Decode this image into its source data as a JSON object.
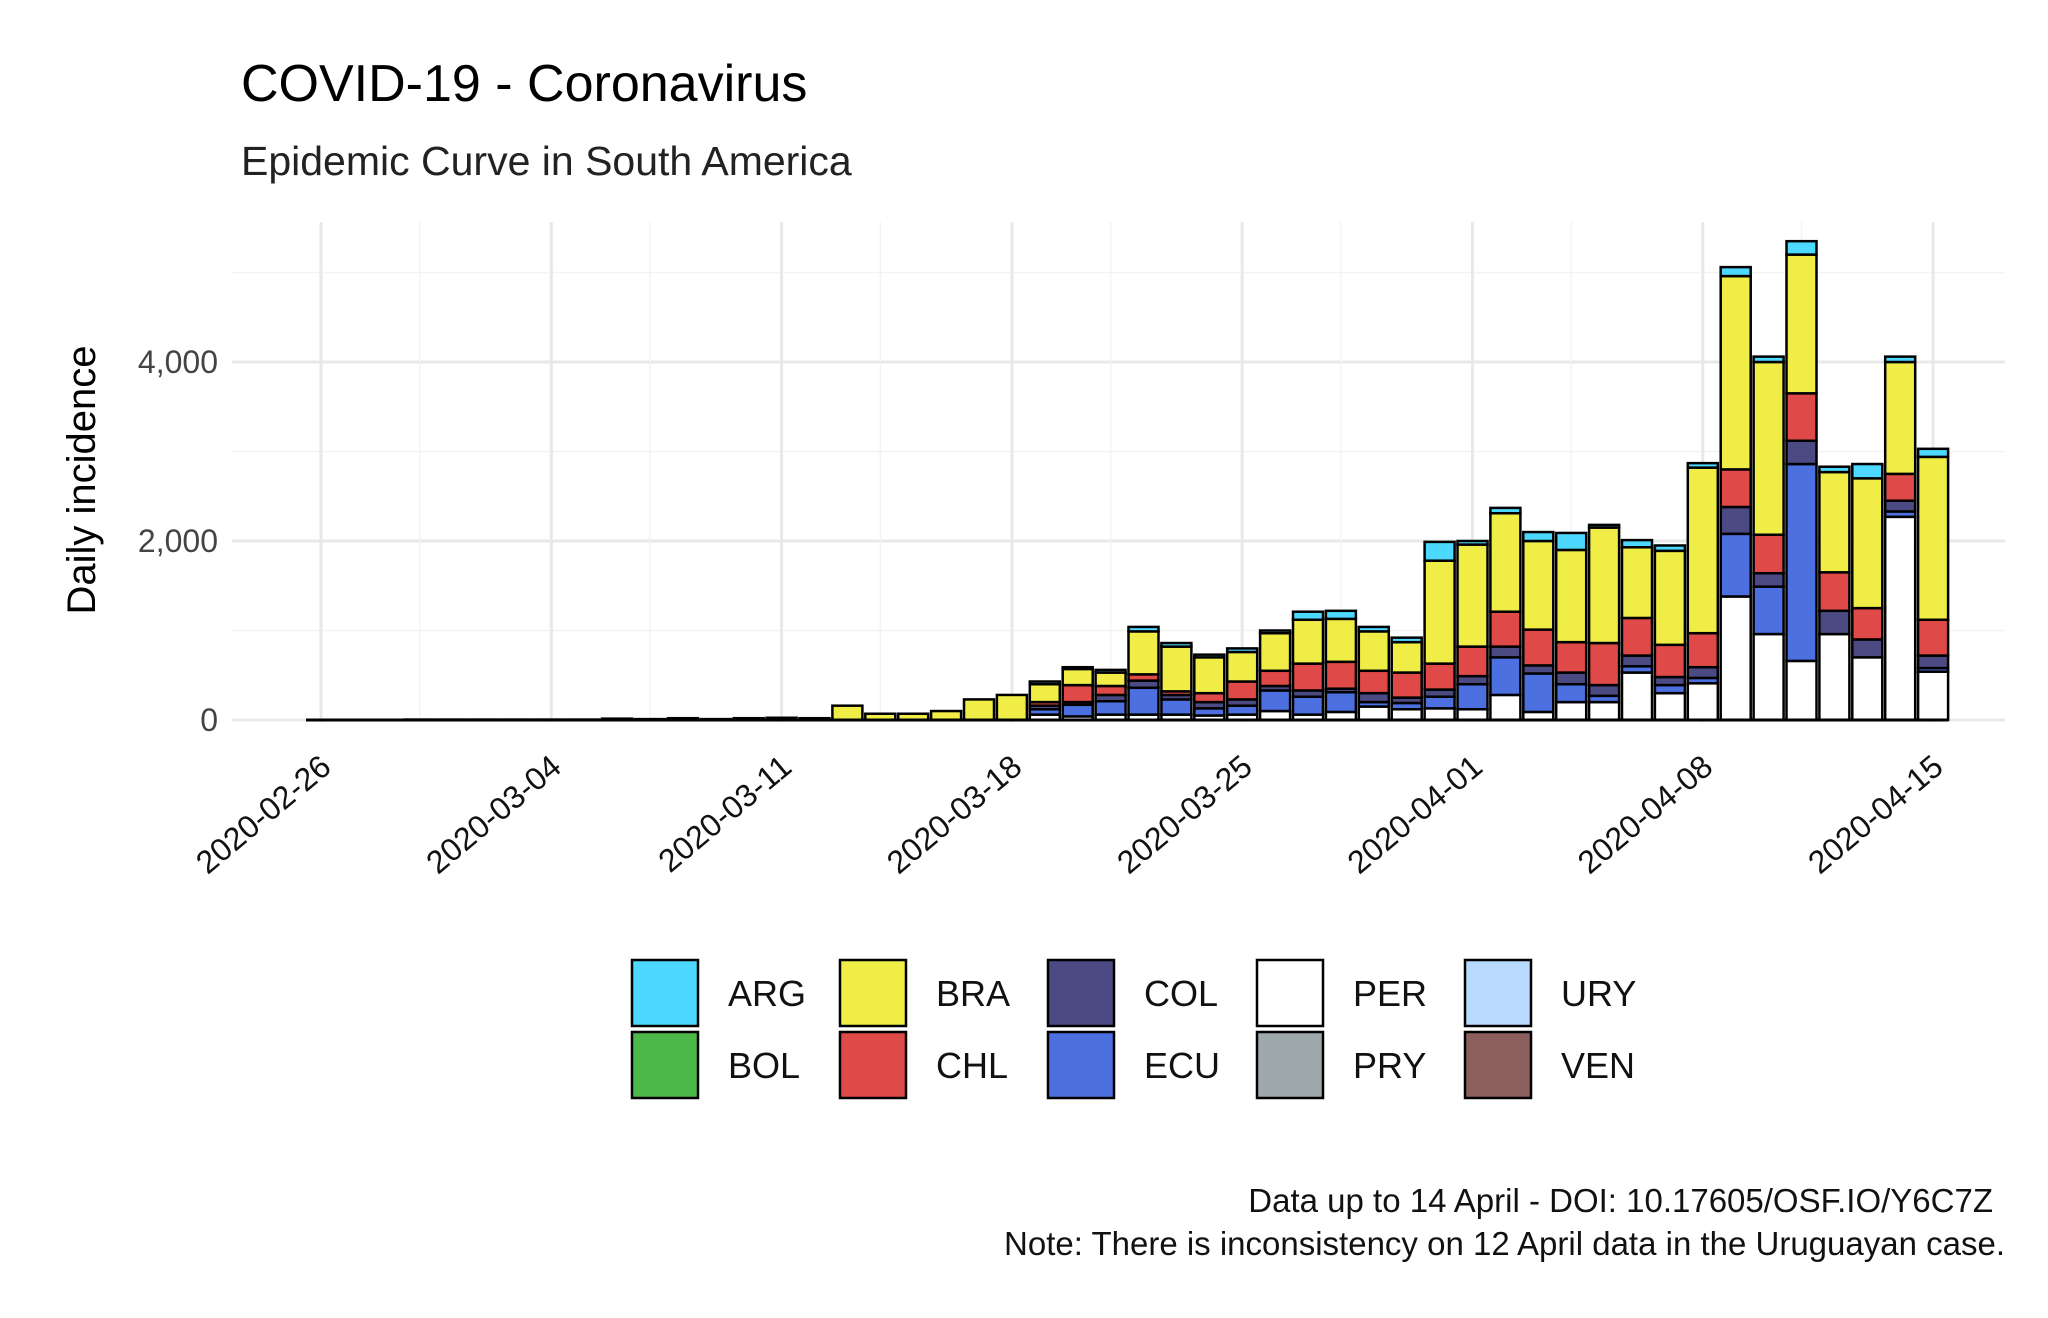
{
  "colors": {
    "ARG": "#4dd9ff",
    "BOL": "#4cba4a",
    "BRA": "#f0ee46",
    "CHL": "#df4a48",
    "COL": "#4b4a82",
    "ECU": "#4c70e0",
    "PER": "#ffffff",
    "PRY": "#9ea9ab",
    "URY": "#b9daff",
    "VEN": "#8c5f5f"
  },
  "caption": {
    "line1": "Data up to 14 April - DOI: 10.17605/OSF.IO/Y6C7Z",
    "line2": "Note: There is inconsistency on 12 April data in the Uruguayan case."
  },
  "chart_data": {
    "type": "bar",
    "stacked": true,
    "title": "COVID-19 - Coronavirus",
    "subtitle": "Epidemic Curve in South America",
    "xlabel": "",
    "ylabel": "Daily incidence",
    "ylim": [
      0,
      5600
    ],
    "yticks": [
      0,
      2000,
      4000
    ],
    "ytick_labels": [
      "0",
      "2,000",
      "4,000"
    ],
    "xticks": [
      "2020-02-26",
      "2020-03-04",
      "2020-03-11",
      "2020-03-18",
      "2020-03-25",
      "2020-04-01",
      "2020-04-08",
      "2020-04-15"
    ],
    "grid": true,
    "legend_position": "bottom",
    "legend": [
      "ARG",
      "BRA",
      "COL",
      "PER",
      "URY",
      "BOL",
      "CHL",
      "ECU",
      "PRY",
      "VEN"
    ],
    "stack_order": [
      "PER",
      "ECU",
      "COL",
      "CHL",
      "BRA",
      "ARG"
    ],
    "categories": [
      "2020-02-26",
      "2020-02-27",
      "2020-02-28",
      "2020-02-29",
      "2020-03-01",
      "2020-03-02",
      "2020-03-03",
      "2020-03-04",
      "2020-03-05",
      "2020-03-06",
      "2020-03-07",
      "2020-03-08",
      "2020-03-09",
      "2020-03-10",
      "2020-03-11",
      "2020-03-12",
      "2020-03-13",
      "2020-03-14",
      "2020-03-15",
      "2020-03-16",
      "2020-03-17",
      "2020-03-18",
      "2020-03-19",
      "2020-03-20",
      "2020-03-21",
      "2020-03-22",
      "2020-03-23",
      "2020-03-24",
      "2020-03-25",
      "2020-03-26",
      "2020-03-27",
      "2020-03-28",
      "2020-03-29",
      "2020-03-30",
      "2020-03-31",
      "2020-04-01",
      "2020-04-02",
      "2020-04-03",
      "2020-04-04",
      "2020-04-05",
      "2020-04-06",
      "2020-04-07",
      "2020-04-08",
      "2020-04-09",
      "2020-04-10",
      "2020-04-11",
      "2020-04-12",
      "2020-04-13",
      "2020-04-14",
      "2020-04-15"
    ],
    "series": [
      {
        "name": "PER",
        "values": [
          0,
          0,
          0,
          0,
          0,
          0,
          0,
          0,
          0,
          0,
          0,
          0,
          0,
          0,
          0,
          0,
          0,
          0,
          0,
          0,
          0,
          0,
          60,
          40,
          60,
          60,
          60,
          50,
          60,
          100,
          60,
          90,
          150,
          120,
          130,
          120,
          280,
          90,
          200,
          200,
          530,
          300,
          410,
          1380,
          960,
          660,
          960,
          700,
          2270,
          540
        ]
      },
      {
        "name": "ECU",
        "values": [
          0,
          0,
          0,
          0,
          0,
          0,
          0,
          0,
          0,
          0,
          0,
          0,
          0,
          0,
          0,
          0,
          0,
          0,
          0,
          0,
          0,
          0,
          60,
          130,
          150,
          300,
          170,
          80,
          100,
          230,
          200,
          220,
          50,
          70,
          130,
          280,
          420,
          430,
          200,
          70,
          70,
          90,
          60,
          700,
          530,
          2200,
          0,
          0,
          60,
          40
        ]
      },
      {
        "name": "COL",
        "values": [
          0,
          0,
          0,
          0,
          0,
          0,
          0,
          0,
          0,
          0,
          0,
          0,
          0,
          0,
          0,
          0,
          0,
          0,
          0,
          0,
          0,
          0,
          40,
          30,
          70,
          80,
          50,
          70,
          70,
          50,
          70,
          40,
          100,
          60,
          80,
          90,
          120,
          90,
          130,
          120,
          120,
          90,
          120,
          300,
          150,
          260,
          260,
          200,
          120,
          140
        ]
      },
      {
        "name": "CHL",
        "values": [
          0,
          0,
          0,
          0,
          0,
          0,
          0,
          0,
          0,
          0,
          0,
          0,
          0,
          0,
          0,
          0,
          0,
          0,
          0,
          0,
          0,
          0,
          40,
          190,
          100,
          70,
          40,
          100,
          200,
          170,
          300,
          300,
          250,
          280,
          290,
          330,
          390,
          400,
          340,
          470,
          420,
          360,
          380,
          420,
          430,
          530,
          430,
          350,
          300,
          400
        ]
      },
      {
        "name": "BRA",
        "values": [
          0,
          0,
          0,
          0,
          0,
          0,
          0,
          0,
          0,
          0,
          0,
          0,
          0,
          0,
          0,
          0,
          0,
          0,
          0,
          0,
          0,
          0,
          200,
          180,
          150,
          480,
          500,
          400,
          330,
          420,
          490,
          480,
          440,
          340,
          1150,
          1140,
          1100,
          990,
          1030,
          1290,
          790,
          1050,
          1850,
          2160,
          1930,
          1550,
          1120,
          1450,
          1250,
          1820
        ]
      },
      {
        "name": "ARG",
        "values": [
          0,
          0,
          0,
          0,
          0,
          0,
          0,
          0,
          0,
          0,
          0,
          0,
          0,
          0,
          0,
          0,
          0,
          0,
          0,
          0,
          0,
          0,
          30,
          20,
          30,
          50,
          40,
          30,
          40,
          30,
          90,
          90,
          50,
          50,
          210,
          40,
          60,
          100,
          190,
          30,
          80,
          60,
          50,
          100,
          60,
          150,
          60,
          160,
          60,
          90
        ]
      }
    ],
    "other_totals": [
      0,
      0,
      0,
      5,
      5,
      5,
      5,
      5,
      5,
      15,
      10,
      20,
      10,
      20,
      25,
      20,
      160,
      70,
      70,
      100,
      230,
      280,
      0,
      0,
      0,
      0,
      0,
      0,
      0,
      0,
      0,
      0,
      0,
      0,
      0,
      0,
      0,
      0,
      0,
      0,
      0,
      0,
      0,
      0,
      0,
      0,
      0,
      0,
      0,
      0
    ]
  }
}
